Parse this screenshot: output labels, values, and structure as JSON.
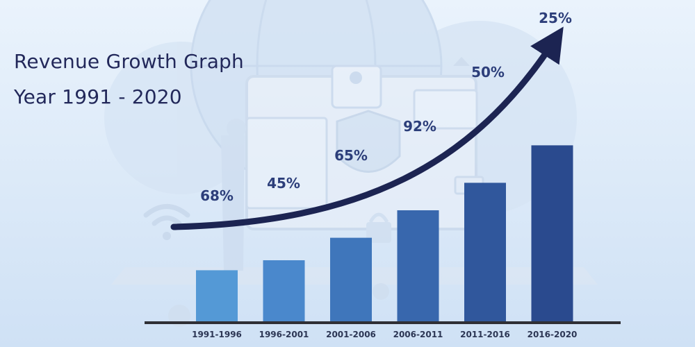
{
  "title_line1": "Revenue Growth Graph",
  "title_line2": "Year 1991 - 2020",
  "chart_data": {
    "type": "bar",
    "categories": [
      "1991-1996",
      "1996-2001",
      "2001-2006",
      "2006-2011",
      "2011-2016",
      "2016-2020"
    ],
    "values": [
      21,
      25,
      34,
      45,
      56,
      71
    ],
    "growth_labels": [
      "68%",
      "45%",
      "65%",
      "92%",
      "50%",
      "25%"
    ],
    "ylim": [
      0,
      100
    ],
    "grid": false,
    "trend_arrow": true,
    "colors": {
      "bars": [
        "#5499d6",
        "#4a88cc",
        "#3f76bb",
        "#3867ad",
        "#30579c",
        "#2a4a8e"
      ],
      "arrow": "#1c2452",
      "labels": "#2c3e7a",
      "baseline": "#2f2f35"
    }
  }
}
